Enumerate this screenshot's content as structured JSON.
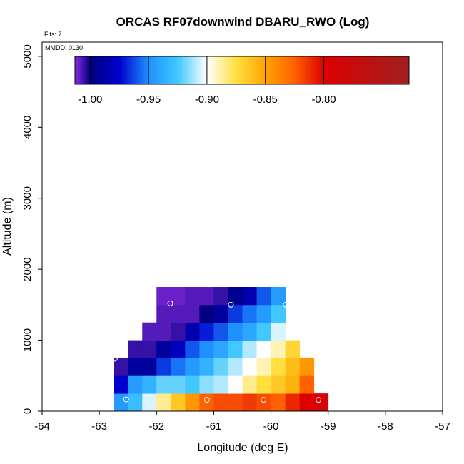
{
  "chart_data": {
    "type": "heatmap",
    "title": "ORCAS RF07downwind DBARU_RWO (Log)",
    "annotations": {
      "flts": "Flts: 7",
      "mmdd": "MMDD: 0130"
    },
    "xlabel": "Longitude (deg E)",
    "ylabel": "Altitude (m)",
    "xlim": [
      -64,
      -57
    ],
    "ylim": [
      0,
      5200
    ],
    "xticks": [
      -64,
      -63,
      -62,
      -61,
      -60,
      -59,
      -58,
      -57
    ],
    "yticks": [
      0,
      1000,
      2000,
      3000,
      4000,
      5000
    ],
    "cell_width_deg": 0.25,
    "cell_height_m": 250,
    "colorbar": {
      "range": [
        -1.013,
        -0.727
      ],
      "ticks": [
        -1.0,
        -0.95,
        -0.9,
        -0.85,
        -0.8
      ],
      "tick_labels": [
        "-1.00",
        "-0.95",
        "-0.90",
        "-0.85",
        "-0.80"
      ],
      "stops": [
        {
          "v": -1.013,
          "color": "#8a2be2"
        },
        {
          "v": -1.0,
          "color": "#000080"
        },
        {
          "v": -0.975,
          "color": "#0000cd"
        },
        {
          "v": -0.95,
          "color": "#1e90ff"
        },
        {
          "v": -0.925,
          "color": "#40c8ff"
        },
        {
          "v": -0.9,
          "color": "#ffffff"
        },
        {
          "v": -0.875,
          "color": "#ffe040"
        },
        {
          "v": -0.85,
          "color": "#ffa500"
        },
        {
          "v": -0.825,
          "color": "#ff6000"
        },
        {
          "v": -0.8,
          "color": "#dd0000"
        },
        {
          "v": -0.727,
          "color": "#a02020"
        }
      ]
    },
    "rows": [
      {
        "y0": 0,
        "x0": -62.75,
        "values": [
          -0.945,
          -0.93,
          -0.905,
          -0.885,
          -0.865,
          -0.845,
          -0.825,
          -0.82,
          -0.82,
          -0.815,
          -0.82,
          -0.825,
          -0.81,
          -0.8,
          -0.79
        ]
      },
      {
        "y0": 250,
        "x0": -62.75,
        "values": [
          -0.975,
          -0.945,
          -0.935,
          -0.92,
          -0.92,
          -0.925,
          -0.915,
          -0.91,
          -0.9,
          -0.885,
          -0.875,
          -0.865,
          -0.855,
          -0.825
        ]
      },
      {
        "y0": 500,
        "x0": -62.75,
        "values": [
          -1.005,
          -0.99,
          -0.99,
          -0.965,
          -0.955,
          -0.945,
          -0.935,
          -0.92,
          -0.91,
          -0.9,
          -0.89,
          -0.875,
          -0.86,
          -0.845
        ]
      },
      {
        "y0": 750,
        "x0": -62.5,
        "values": [
          -1.005,
          -1.005,
          -0.99,
          -0.98,
          -0.96,
          -0.95,
          -0.94,
          -0.925,
          -0.91,
          -0.9,
          -0.89,
          -0.87
        ]
      },
      {
        "y0": 1000,
        "x0": -62.25,
        "values": [
          -1.008,
          -1.008,
          -1.005,
          -0.985,
          -0.97,
          -0.96,
          -0.95,
          -0.94,
          -0.925,
          -0.905
        ]
      },
      {
        "y0": 1250,
        "x0": -62.0,
        "values": [
          -1.008,
          -1.008,
          -1.008,
          -1.0,
          -0.99,
          -0.965,
          -0.955,
          -0.945,
          -0.925
        ]
      },
      {
        "y0": 1500,
        "x0": -62.0,
        "values": [
          -1.01,
          -1.01,
          -1.008,
          -1.008,
          -1.005,
          -0.995,
          -0.985,
          -0.96,
          -0.945
        ]
      }
    ],
    "markers": [
      {
        "x": -62.73,
        "y": 740
      },
      {
        "x": -62.53,
        "y": 165
      },
      {
        "x": -61.76,
        "y": 1520
      },
      {
        "x": -61.12,
        "y": 160
      },
      {
        "x": -60.7,
        "y": 1500
      },
      {
        "x": -60.13,
        "y": 160
      },
      {
        "x": -59.74,
        "y": 1500
      },
      {
        "x": -59.17,
        "y": 160
      }
    ]
  }
}
